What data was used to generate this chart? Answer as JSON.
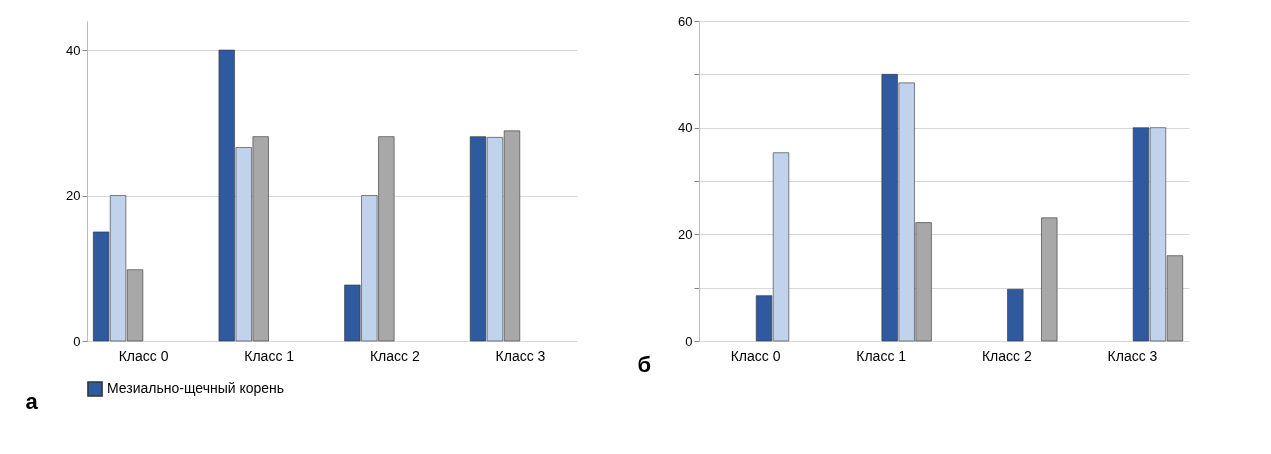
{
  "chart_data": [
    {
      "type": "bar",
      "categories": [
        "Класс 0",
        "Класс 1",
        "Класс 2",
        "Класс 3"
      ],
      "ylim": [
        0,
        44
      ],
      "yticks": [
        0,
        20,
        40
      ],
      "grid": "y",
      "legend": "bottom",
      "annotations": [
        "а"
      ],
      "series": [
        {
          "name": "Мезиально-щечный корень",
          "color": "#2f5aa0",
          "values": [
            15,
            40,
            7.7,
            28.1
          ]
        },
        {
          "color": "#c0d2ec",
          "values": [
            20,
            26.6,
            20,
            28
          ]
        },
        {
          "color": "#a8a8a8",
          "values": [
            9.8,
            28.1,
            28.1,
            28.9
          ]
        }
      ]
    },
    {
      "type": "bar",
      "categories": [
        "Класс 0",
        "Класс 1",
        "Класс 2",
        "Класс 3"
      ],
      "ylim": [
        0,
        60
      ],
      "yticks": [
        0,
        {
          "value": 10,
          "label": null
        },
        20,
        {
          "value": 30,
          "label": null
        },
        40,
        {
          "value": 50,
          "label": null
        },
        60
      ],
      "grid": "y",
      "annotations": [
        "б"
      ],
      "series": [
        {
          "color": "#2f5aa0",
          "values": [
            8.5,
            50,
            9.7,
            40
          ]
        },
        {
          "color": "#c0d2ec",
          "values": [
            35.3,
            48.4,
            null,
            40
          ]
        },
        {
          "color": "#a8a8a8",
          "values": [
            null,
            22.2,
            23.1,
            16
          ]
        }
      ]
    }
  ]
}
